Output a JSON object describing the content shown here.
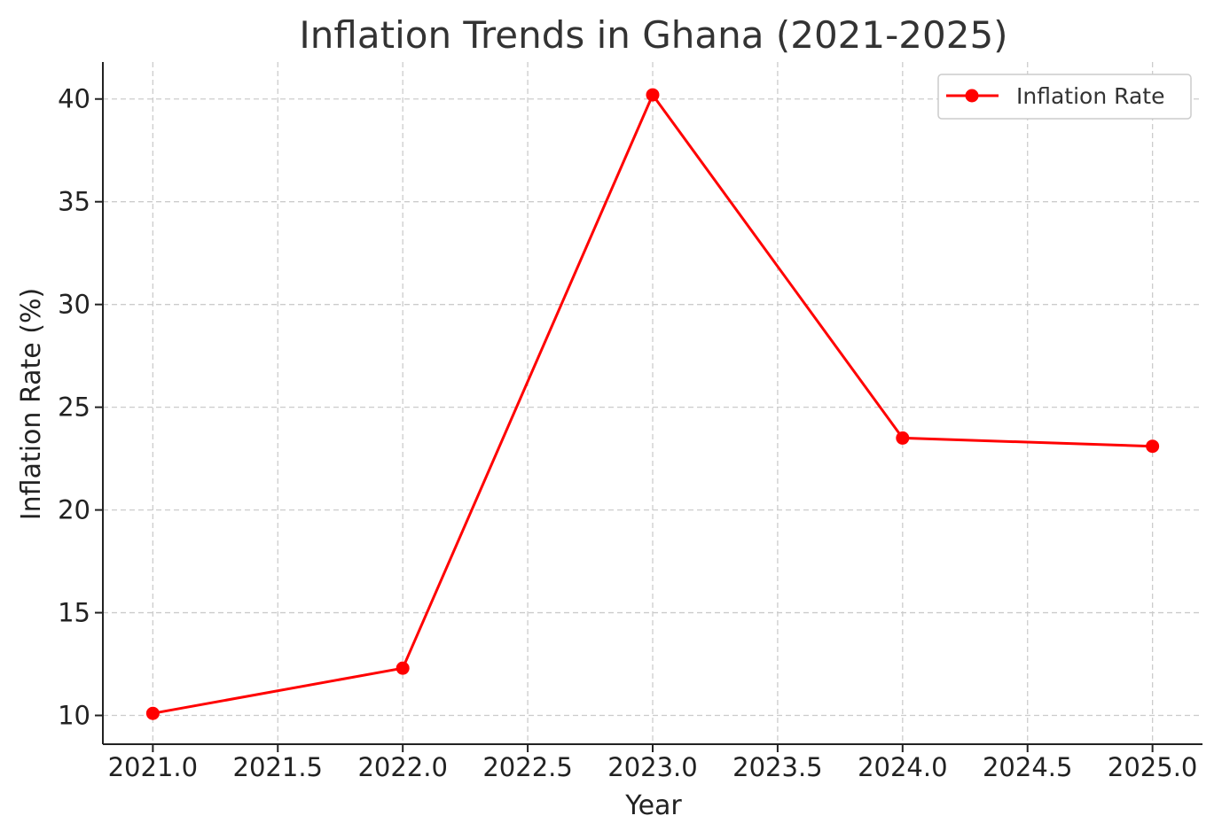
{
  "chart_data": {
    "type": "line",
    "title": "Inflation Trends in Ghana (2021-2025)",
    "xlabel": "Year",
    "ylabel": "Inflation Rate (%)",
    "xlim": [
      2020.8,
      2025.2
    ],
    "ylim": [
      8.6,
      41.8
    ],
    "x_ticks": [
      2021.0,
      2021.5,
      2022.0,
      2022.5,
      2023.0,
      2023.5,
      2024.0,
      2024.5,
      2025.0
    ],
    "x_tick_labels": [
      "2021.0",
      "2021.5",
      "2022.0",
      "2022.5",
      "2023.0",
      "2023.5",
      "2024.0",
      "2024.5",
      "2025.0"
    ],
    "y_ticks": [
      10,
      15,
      20,
      25,
      30,
      35,
      40
    ],
    "y_tick_labels": [
      "10",
      "15",
      "20",
      "25",
      "30",
      "35",
      "40"
    ],
    "grid": true,
    "legend_position": "top-right",
    "series": [
      {
        "name": "Inflation Rate",
        "color": "#ff0000",
        "marker": "circle",
        "x": [
          2021,
          2022,
          2023,
          2024,
          2025
        ],
        "y": [
          10.1,
          12.3,
          40.2,
          23.5,
          23.1
        ]
      }
    ]
  }
}
